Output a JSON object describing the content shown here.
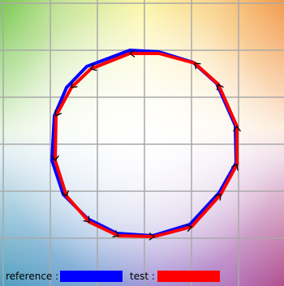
{
  "legend": {
    "reference_label": "reference :",
    "test_label": "test :"
  },
  "colors": {
    "reference": "#0000ff",
    "test": "#ff0000",
    "grid": "#a9a9a9",
    "arrow": "#000000"
  },
  "stroke_order_arrows": true
}
